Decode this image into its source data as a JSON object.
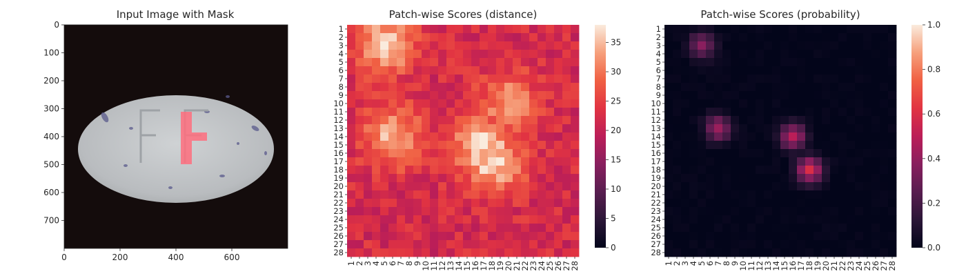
{
  "figure": {
    "panels": [
      {
        "title": "Input Image with Mask"
      },
      {
        "title": "Patch-wise Scores (distance)"
      },
      {
        "title": "Patch-wise Scores (probability)"
      }
    ]
  },
  "chart_data": [
    {
      "type": "image",
      "title": "Input Image with Mask",
      "description_elements": [
        "egg",
        "FF",
        "mask"
      ],
      "x_ticks": [
        0,
        200,
        400,
        600
      ],
      "y_ticks": [
        0,
        100,
        200,
        300,
        400,
        500,
        600,
        700
      ],
      "xlim": [
        0,
        799
      ],
      "ylim": [
        799,
        0
      ]
    },
    {
      "type": "heatmap",
      "title": "Patch-wise Scores (distance)",
      "x_labels": [
        "1",
        "2",
        "3",
        "4",
        "5",
        "6",
        "7",
        "8",
        "9",
        "10",
        "11",
        "12",
        "13",
        "14",
        "15",
        "16",
        "17",
        "18",
        "19",
        "20",
        "21",
        "22",
        "23",
        "24",
        "25",
        "26",
        "27",
        "28"
      ],
      "y_labels": [
        "1",
        "2",
        "3",
        "4",
        "5",
        "6",
        "7",
        "8",
        "9",
        "10",
        "11",
        "12",
        "13",
        "14",
        "15",
        "16",
        "17",
        "18",
        "19",
        "20",
        "21",
        "22",
        "23",
        "24",
        "25",
        "26",
        "27",
        "28"
      ],
      "colorbar": {
        "min": 0,
        "max": 38,
        "ticks": [
          0,
          5,
          10,
          15,
          20,
          25,
          30,
          35
        ]
      },
      "colormap": "rocket",
      "hotspots": [
        {
          "row": 3,
          "col": 5,
          "value": 36
        },
        {
          "row": 14,
          "col": 6,
          "value": 34
        },
        {
          "row": 15,
          "col": 17,
          "value": 37
        },
        {
          "row": 17,
          "col": 18,
          "value": 37
        },
        {
          "row": 10,
          "col": 20,
          "value": 32
        }
      ],
      "background_value": 22
    },
    {
      "type": "heatmap",
      "title": "Patch-wise Scores (probability)",
      "x_labels": [
        "1",
        "2",
        "3",
        "4",
        "5",
        "6",
        "7",
        "8",
        "9",
        "10",
        "11",
        "12",
        "13",
        "14",
        "15",
        "16",
        "17",
        "18",
        "19",
        "20",
        "21",
        "22",
        "23",
        "24",
        "25",
        "26",
        "27",
        "28"
      ],
      "y_labels": [
        "1",
        "2",
        "3",
        "4",
        "5",
        "6",
        "7",
        "8",
        "9",
        "10",
        "11",
        "12",
        "13",
        "14",
        "15",
        "16",
        "17",
        "18",
        "19",
        "20",
        "21",
        "22",
        "23",
        "24",
        "25",
        "26",
        "27",
        "28"
      ],
      "colorbar": {
        "min": 0.0,
        "max": 1.0,
        "ticks": [
          "0.0",
          "0.2",
          "0.4",
          "0.6",
          "0.8",
          "1.0"
        ]
      },
      "colormap": "rocket",
      "hotspots": [
        {
          "row": 3,
          "col": 5,
          "value": 0.38
        },
        {
          "row": 13,
          "col": 7,
          "value": 0.42
        },
        {
          "row": 14,
          "col": 16,
          "value": 0.5
        },
        {
          "row": 18,
          "col": 18,
          "value": 0.58
        }
      ],
      "background_value": 0.0
    }
  ]
}
